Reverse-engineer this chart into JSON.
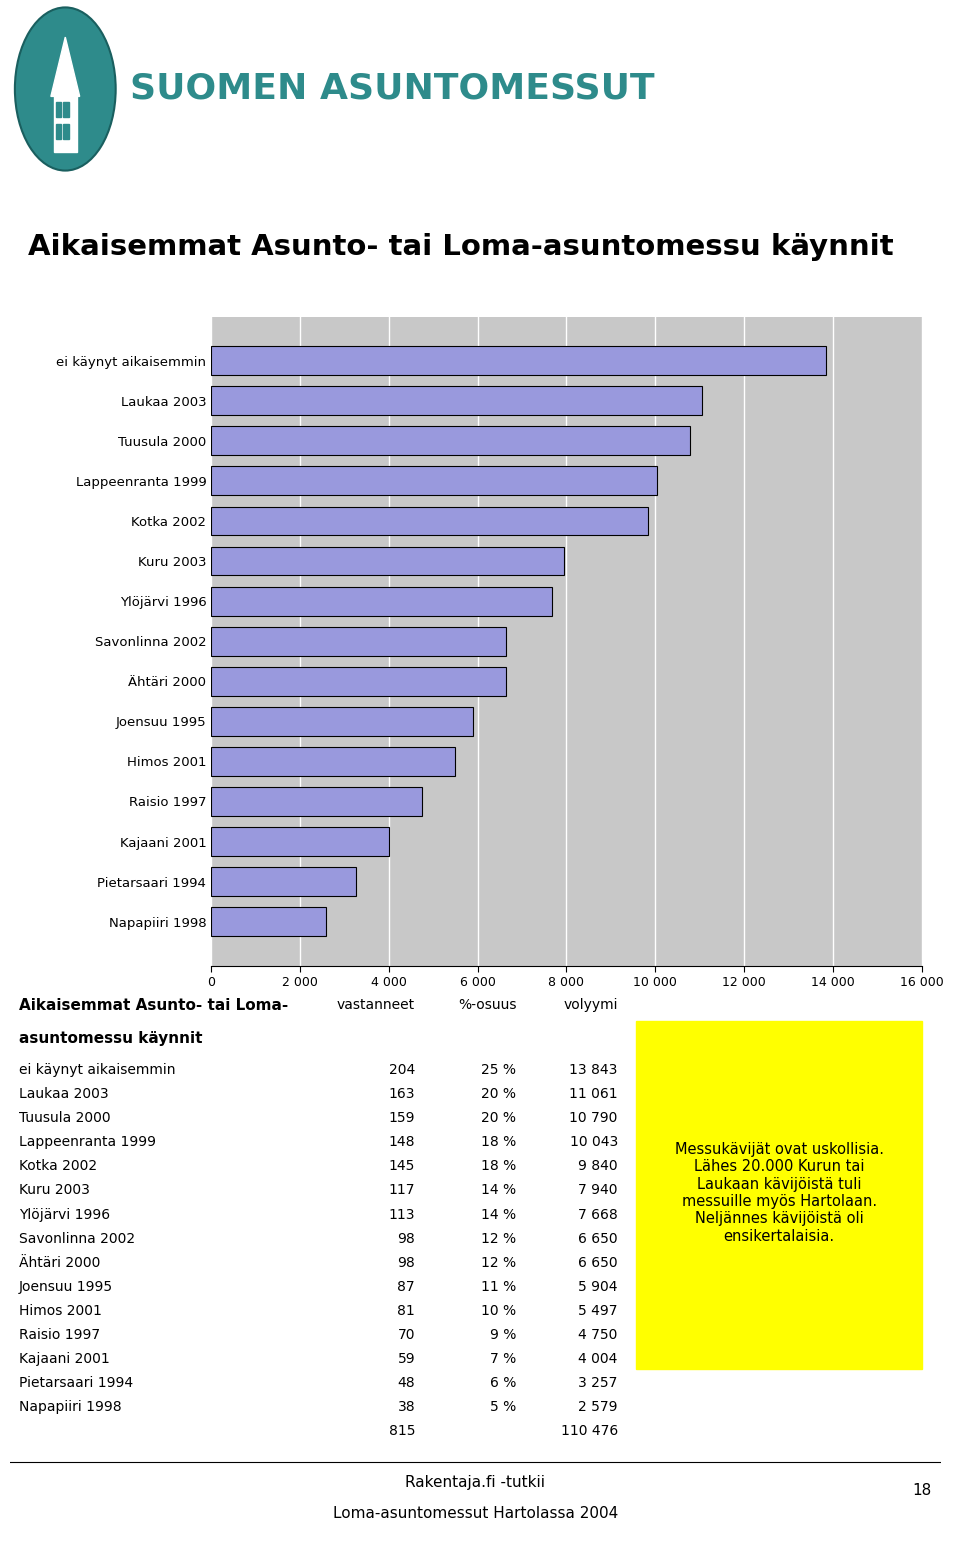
{
  "title": "Aikaisemmat Asunto- tai Loma-asuntomessu käynnit",
  "header_text": "SUOMEN ASUNTOMESSUT",
  "categories": [
    "Napapiiri 1998",
    "Pietarsaari 1994",
    "Kajaani 2001",
    "Raisio 1997",
    "Himos 2001",
    "Joensuu 1995",
    "Ähtäri 2000",
    "Savonlinna 2002",
    "Ylöjärvi 1996",
    "Kuru 2003",
    "Kotka 2002",
    "Lappeenranta 1999",
    "Tuusula 2000",
    "Laukaa 2003",
    "ei käynyt aikaisemmin"
  ],
  "values": [
    2579,
    3257,
    4004,
    4750,
    5497,
    5904,
    6650,
    6650,
    7668,
    7940,
    9840,
    10043,
    10790,
    11061,
    13843
  ],
  "bar_color": "#9999dd",
  "bar_edge_color": "#000000",
  "bg_color": "#c8c8c8",
  "xlim": [
    0,
    16000
  ],
  "xticks": [
    0,
    2000,
    4000,
    6000,
    8000,
    10000,
    12000,
    14000,
    16000
  ],
  "xtick_labels": [
    "0",
    "2 000",
    "4 000",
    "6 000",
    "8 000",
    "10 000",
    "12 000",
    "14 000",
    "16 000"
  ],
  "table_title_line1": "Aikaisemmat Asunto- tai Loma-",
  "table_title_line2": "asuntomessu käynnit",
  "table_headers": [
    "vastanneet",
    "%-osuus",
    "volyymi"
  ],
  "table_rows": [
    [
      "ei käynyt aikaisemmin",
      "204",
      "25 %",
      "13 843"
    ],
    [
      "Laukaa 2003",
      "163",
      "20 %",
      "11 061"
    ],
    [
      "Tuusula 2000",
      "159",
      "20 %",
      "10 790"
    ],
    [
      "Lappeenranta 1999",
      "148",
      "18 %",
      "10 043"
    ],
    [
      "Kotka 2002",
      "145",
      "18 %",
      "9 840"
    ],
    [
      "Kuru 2003",
      "117",
      "14 %",
      "7 940"
    ],
    [
      "Ylöjärvi 1996",
      "113",
      "14 %",
      "7 668"
    ],
    [
      "Savonlinna 2002",
      "98",
      "12 %",
      "6 650"
    ],
    [
      "Ähtäri 2000",
      "98",
      "12 %",
      "6 650"
    ],
    [
      "Joensuu 1995",
      "87",
      "11 %",
      "5 904"
    ],
    [
      "Himos 2001",
      "81",
      "10 %",
      "5 497"
    ],
    [
      "Raisio 1997",
      "70",
      "9 %",
      "4 750"
    ],
    [
      "Kajaani 2001",
      "59",
      "7 %",
      "4 004"
    ],
    [
      "Pietarsaari 1994",
      "48",
      "6 %",
      "3 257"
    ],
    [
      "Napapiiri 1998",
      "38",
      "5 %",
      "2 579"
    ],
    [
      "",
      "815",
      "",
      "110 476"
    ]
  ],
  "yellow_box_text": "Messukävijät ovat uskollisia.\nLähes 20.000 Kurun tai\nLaukaan kävijöistä tuli\nmessuille myös Hartolaan.\nNeljännes kävijöistä oli\nensikertalaisia.",
  "yellow_box_color": "#ffff00",
  "footer_line1": "Rakentaja.fi -tutkii",
  "footer_line2": "Loma-asuntomessut Hartolassa 2004",
  "footer_page": "18",
  "teal_color": "#2e8b8b",
  "white_color": "#ffffff"
}
